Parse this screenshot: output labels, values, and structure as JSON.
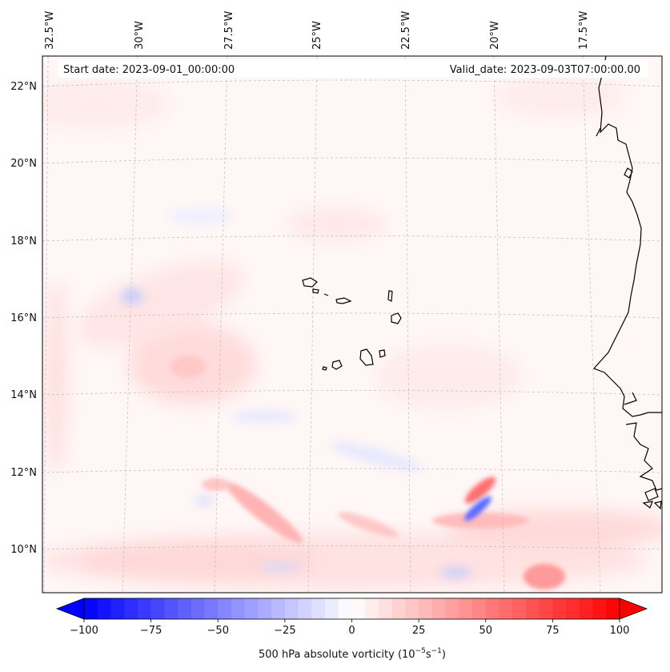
{
  "header": {
    "start_date": "Start date: 2023-09-01_00:00:00",
    "valid_date": "Valid_date: 2023-09-03T07:00:00.00"
  },
  "map": {
    "projection": "Lambert conformal",
    "variable": "500 hPa absolute vorticity",
    "units_scale": "10^-5 s^-1",
    "lon_ticks": [
      "32.5°W",
      "30°W",
      "27.5°W",
      "25°W",
      "22.5°W",
      "20°W",
      "17.5°W"
    ],
    "lat_ticks": [
      "22°N",
      "20°N",
      "18°N",
      "16°N",
      "14°N",
      "12°N",
      "10°N"
    ],
    "features": [
      "Cape Verde islands",
      "West African coastline (Mauritania, Senegal, Gambia, Guinea-Bissau)"
    ]
  },
  "colorbar": {
    "min": -100,
    "max": 100,
    "cmap": "bwr",
    "extend": "both",
    "tick_labels": [
      "−100",
      "−75",
      "−50",
      "−25",
      "0",
      "25",
      "50",
      "75",
      "100"
    ],
    "label_prefix": "500 hPa absolute vorticity (10",
    "label_exp1": "−5",
    "label_mid": "s",
    "label_exp2": "−1",
    "label_suffix": ")"
  }
}
